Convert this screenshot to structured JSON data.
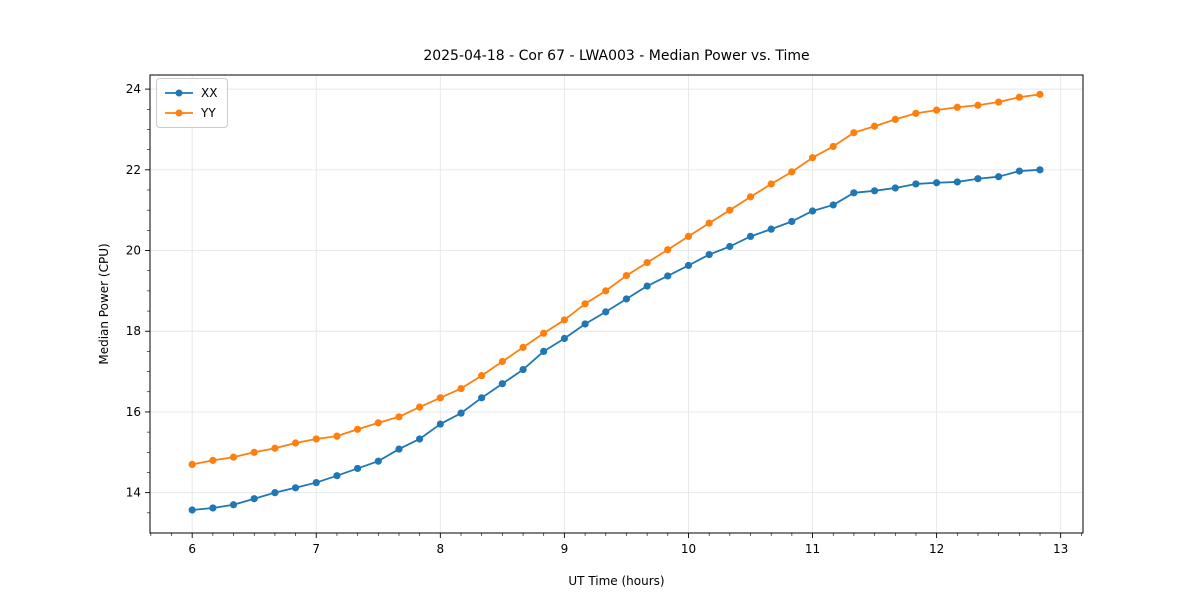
{
  "figure": {
    "background": "#ffffff",
    "plot_background": "#ffffff",
    "spine_color": "#000000",
    "grid_color": "#e6e6e6",
    "tick_color": "#000000",
    "text_color": "#000000"
  },
  "chart_data": {
    "type": "line",
    "title": "2025-04-18 - Cor 67 - LWA003 - Median Power vs. Time",
    "xlabel": "UT Time (hours)",
    "ylabel": "Median Power (CPU)",
    "x": [
      6.0,
      6.167,
      6.333,
      6.5,
      6.667,
      6.833,
      7.0,
      7.167,
      7.333,
      7.5,
      7.667,
      7.833,
      8.0,
      8.167,
      8.333,
      8.5,
      8.667,
      8.833,
      9.0,
      9.167,
      9.333,
      9.5,
      9.667,
      9.833,
      10.0,
      10.167,
      10.333,
      10.5,
      10.667,
      10.833,
      11.0,
      11.167,
      11.333,
      11.5,
      11.667,
      11.833,
      12.0,
      12.167,
      12.333,
      12.5,
      12.667,
      12.833
    ],
    "series": [
      {
        "name": "XX",
        "color": "#1f77b4",
        "marker": "circle",
        "values": [
          13.57,
          13.62,
          13.7,
          13.85,
          14.0,
          14.12,
          14.25,
          14.42,
          14.6,
          14.78,
          15.08,
          15.33,
          15.7,
          15.97,
          16.35,
          16.7,
          17.05,
          17.5,
          17.82,
          18.18,
          18.48,
          18.8,
          19.12,
          19.37,
          19.63,
          19.9,
          20.1,
          20.35,
          20.53,
          20.72,
          20.98,
          21.13,
          21.43,
          21.48,
          21.55,
          21.65,
          21.68,
          21.7,
          21.78,
          21.83,
          21.97,
          22.0
        ]
      },
      {
        "name": "YY",
        "color": "#ff7f0e",
        "marker": "circle",
        "values": [
          14.7,
          14.8,
          14.88,
          15.0,
          15.1,
          15.23,
          15.33,
          15.4,
          15.57,
          15.73,
          15.88,
          16.12,
          16.35,
          16.58,
          16.9,
          17.25,
          17.6,
          17.95,
          18.28,
          18.68,
          19.0,
          19.38,
          19.7,
          20.02,
          20.35,
          20.68,
          21.0,
          21.33,
          21.65,
          21.95,
          22.3,
          22.58,
          22.92,
          23.08,
          23.25,
          23.4,
          23.48,
          23.55,
          23.6,
          23.68,
          23.8,
          23.87
        ]
      }
    ],
    "xlim": [
      5.66,
      13.18
    ],
    "ylim": [
      13.0,
      24.35
    ],
    "x_ticks": [
      6,
      7,
      8,
      9,
      10,
      11,
      12,
      13
    ],
    "y_ticks": [
      14,
      16,
      18,
      20,
      22,
      24
    ],
    "x_minor_step": 0.16667,
    "y_minor_step": 0.5,
    "grid": true,
    "legend_position": "upper left"
  }
}
